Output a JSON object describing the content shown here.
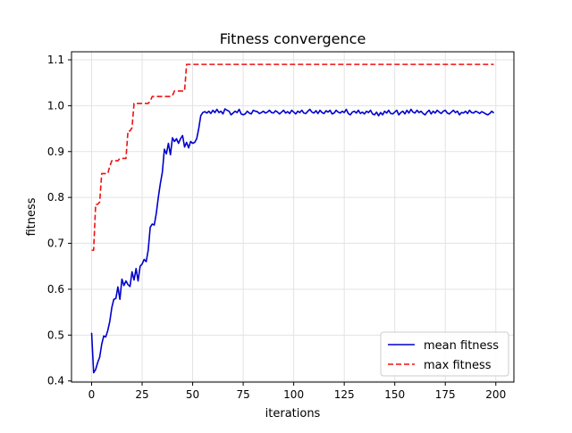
{
  "chart_data": {
    "type": "line",
    "title": "Fitness convergence",
    "xlabel": "iterations",
    "ylabel": "fitness",
    "xlim": [
      -9.95,
      208.95
    ],
    "ylim": [
      0.3975,
      1.1175
    ],
    "xticks": [
      0,
      25,
      50,
      75,
      100,
      125,
      150,
      175,
      200
    ],
    "xtick_labels": [
      "0",
      "25",
      "50",
      "75",
      "100",
      "125",
      "150",
      "175",
      "200"
    ],
    "yticks": [
      0.4,
      0.5,
      0.6,
      0.7,
      0.8,
      0.9,
      1.0,
      1.1
    ],
    "ytick_labels": [
      "0.4",
      "0.5",
      "0.6",
      "0.7",
      "0.8",
      "0.9",
      "1.0",
      "1.1"
    ],
    "grid": true,
    "legend_position": "lower right",
    "series": [
      {
        "name": "mean fitness",
        "color": "#0000cc",
        "style": "solid",
        "points": [
          [
            0,
            0.505
          ],
          [
            1,
            0.418
          ],
          [
            2,
            0.425
          ],
          [
            3,
            0.44
          ],
          [
            4,
            0.452
          ],
          [
            5,
            0.48
          ],
          [
            6,
            0.498
          ],
          [
            7,
            0.496
          ],
          [
            8,
            0.51
          ],
          [
            9,
            0.53
          ],
          [
            10,
            0.56
          ],
          [
            11,
            0.578
          ],
          [
            12,
            0.58
          ],
          [
            13,
            0.605
          ],
          [
            14,
            0.578
          ],
          [
            15,
            0.622
          ],
          [
            16,
            0.608
          ],
          [
            17,
            0.618
          ],
          [
            18,
            0.61
          ],
          [
            19,
            0.606
          ],
          [
            20,
            0.638
          ],
          [
            21,
            0.62
          ],
          [
            22,
            0.645
          ],
          [
            23,
            0.618
          ],
          [
            24,
            0.65
          ],
          [
            25,
            0.655
          ],
          [
            26,
            0.665
          ],
          [
            27,
            0.66
          ],
          [
            28,
            0.685
          ],
          [
            29,
            0.735
          ],
          [
            30,
            0.742
          ],
          [
            31,
            0.74
          ],
          [
            32,
            0.765
          ],
          [
            33,
            0.8
          ],
          [
            34,
            0.83
          ],
          [
            35,
            0.855
          ],
          [
            36,
            0.905
          ],
          [
            37,
            0.895
          ],
          [
            38,
            0.918
          ],
          [
            39,
            0.893
          ],
          [
            40,
            0.93
          ],
          [
            41,
            0.922
          ],
          [
            42,
            0.928
          ],
          [
            43,
            0.918
          ],
          [
            44,
            0.928
          ],
          [
            45,
            0.935
          ],
          [
            46,
            0.91
          ],
          [
            47,
            0.92
          ],
          [
            48,
            0.908
          ],
          [
            49,
            0.922
          ],
          [
            50,
            0.918
          ],
          [
            51,
            0.92
          ],
          [
            52,
            0.928
          ],
          [
            53,
            0.95
          ],
          [
            54,
            0.978
          ],
          [
            55,
            0.985
          ],
          [
            56,
            0.987
          ],
          [
            57,
            0.984
          ],
          [
            58,
            0.988
          ],
          [
            59,
            0.983
          ],
          [
            60,
            0.99
          ],
          [
            61,
            0.985
          ],
          [
            62,
            0.992
          ],
          [
            63,
            0.985
          ],
          [
            64,
            0.988
          ],
          [
            65,
            0.982
          ],
          [
            66,
            0.993
          ],
          [
            67,
            0.99
          ],
          [
            68,
            0.988
          ],
          [
            69,
            0.98
          ],
          [
            70,
            0.984
          ],
          [
            71,
            0.988
          ],
          [
            72,
            0.985
          ],
          [
            73,
            0.992
          ],
          [
            74,
            0.982
          ],
          [
            75,
            0.98
          ],
          [
            76,
            0.982
          ],
          [
            77,
            0.988
          ],
          [
            78,
            0.984
          ],
          [
            79,
            0.982
          ],
          [
            80,
            0.99
          ],
          [
            81,
            0.988
          ],
          [
            82,
            0.987
          ],
          [
            83,
            0.983
          ],
          [
            84,
            0.985
          ],
          [
            85,
            0.988
          ],
          [
            86,
            0.984
          ],
          [
            87,
            0.986
          ],
          [
            88,
            0.99
          ],
          [
            89,
            0.985
          ],
          [
            90,
            0.984
          ],
          [
            91,
            0.989
          ],
          [
            92,
            0.986
          ],
          [
            93,
            0.982
          ],
          [
            94,
            0.986
          ],
          [
            95,
            0.99
          ],
          [
            96,
            0.984
          ],
          [
            97,
            0.987
          ],
          [
            98,
            0.983
          ],
          [
            99,
            0.99
          ],
          [
            100,
            0.986
          ],
          [
            101,
            0.982
          ],
          [
            102,
            0.988
          ],
          [
            103,
            0.985
          ],
          [
            104,
            0.99
          ],
          [
            105,
            0.984
          ],
          [
            106,
            0.983
          ],
          [
            107,
            0.988
          ],
          [
            108,
            0.992
          ],
          [
            109,
            0.986
          ],
          [
            110,
            0.984
          ],
          [
            111,
            0.989
          ],
          [
            112,
            0.983
          ],
          [
            113,
            0.99
          ],
          [
            114,
            0.985
          ],
          [
            115,
            0.983
          ],
          [
            116,
            0.989
          ],
          [
            117,
            0.986
          ],
          [
            118,
            0.99
          ],
          [
            119,
            0.982
          ],
          [
            120,
            0.984
          ],
          [
            121,
            0.99
          ],
          [
            122,
            0.986
          ],
          [
            123,
            0.984
          ],
          [
            124,
            0.988
          ],
          [
            125,
            0.985
          ],
          [
            126,
            0.992
          ],
          [
            127,
            0.983
          ],
          [
            128,
            0.98
          ],
          [
            129,
            0.986
          ],
          [
            130,
            0.988
          ],
          [
            131,
            0.984
          ],
          [
            132,
            0.99
          ],
          [
            133,
            0.983
          ],
          [
            134,
            0.986
          ],
          [
            135,
            0.982
          ],
          [
            136,
            0.988
          ],
          [
            137,
            0.985
          ],
          [
            138,
            0.99
          ],
          [
            139,
            0.982
          ],
          [
            140,
            0.98
          ],
          [
            141,
            0.986
          ],
          [
            142,
            0.978
          ],
          [
            143,
            0.985
          ],
          [
            144,
            0.98
          ],
          [
            145,
            0.988
          ],
          [
            146,
            0.984
          ],
          [
            147,
            0.99
          ],
          [
            148,
            0.983
          ],
          [
            149,
            0.982
          ],
          [
            150,
            0.986
          ],
          [
            151,
            0.99
          ],
          [
            152,
            0.98
          ],
          [
            153,
            0.985
          ],
          [
            154,
            0.988
          ],
          [
            155,
            0.982
          ],
          [
            156,
            0.99
          ],
          [
            157,
            0.984
          ],
          [
            158,
            0.992
          ],
          [
            159,
            0.986
          ],
          [
            160,
            0.984
          ],
          [
            161,
            0.99
          ],
          [
            162,
            0.985
          ],
          [
            163,
            0.988
          ],
          [
            164,
            0.983
          ],
          [
            165,
            0.98
          ],
          [
            166,
            0.986
          ],
          [
            167,
            0.99
          ],
          [
            168,
            0.982
          ],
          [
            169,
            0.988
          ],
          [
            170,
            0.984
          ],
          [
            171,
            0.99
          ],
          [
            172,
            0.986
          ],
          [
            173,
            0.983
          ],
          [
            174,
            0.988
          ],
          [
            175,
            0.99
          ],
          [
            176,
            0.984
          ],
          [
            177,
            0.982
          ],
          [
            178,
            0.986
          ],
          [
            179,
            0.99
          ],
          [
            180,
            0.985
          ],
          [
            181,
            0.988
          ],
          [
            182,
            0.98
          ],
          [
            183,
            0.985
          ],
          [
            184,
            0.984
          ],
          [
            185,
            0.988
          ],
          [
            186,
            0.983
          ],
          [
            187,
            0.99
          ],
          [
            188,
            0.985
          ],
          [
            189,
            0.984
          ],
          [
            190,
            0.988
          ],
          [
            191,
            0.986
          ],
          [
            192,
            0.983
          ],
          [
            193,
            0.987
          ],
          [
            194,
            0.985
          ],
          [
            195,
            0.982
          ],
          [
            196,
            0.98
          ],
          [
            197,
            0.983
          ],
          [
            198,
            0.988
          ],
          [
            199,
            0.984
          ]
        ]
      },
      {
        "name": "max fitness",
        "color": "#ee1111",
        "style": "dashed",
        "points": [
          [
            0,
            0.685
          ],
          [
            1,
            0.685
          ],
          [
            2,
            0.785
          ],
          [
            3,
            0.785
          ],
          [
            4,
            0.79
          ],
          [
            5,
            0.852
          ],
          [
            6,
            0.852
          ],
          [
            7,
            0.852
          ],
          [
            8,
            0.852
          ],
          [
            9,
            0.868
          ],
          [
            10,
            0.88
          ],
          [
            11,
            0.88
          ],
          [
            12,
            0.88
          ],
          [
            13,
            0.88
          ],
          [
            14,
            0.885
          ],
          [
            15,
            0.885
          ],
          [
            16,
            0.885
          ],
          [
            17,
            0.885
          ],
          [
            18,
            0.945
          ],
          [
            19,
            0.945
          ],
          [
            20,
            0.952
          ],
          [
            21,
            1.005
          ],
          [
            22,
            1.005
          ],
          [
            23,
            1.005
          ],
          [
            24,
            1.005
          ],
          [
            25,
            1.005
          ],
          [
            26,
            1.005
          ],
          [
            27,
            1.005
          ],
          [
            28,
            1.005
          ],
          [
            29,
            1.01
          ],
          [
            30,
            1.02
          ],
          [
            31,
            1.02
          ],
          [
            32,
            1.02
          ],
          [
            33,
            1.02
          ],
          [
            34,
            1.02
          ],
          [
            35,
            1.02
          ],
          [
            36,
            1.02
          ],
          [
            37,
            1.02
          ],
          [
            38,
            1.02
          ],
          [
            39,
            1.02
          ],
          [
            40,
            1.022
          ],
          [
            41,
            1.032
          ],
          [
            42,
            1.032
          ],
          [
            43,
            1.032
          ],
          [
            44,
            1.032
          ],
          [
            45,
            1.032
          ],
          [
            46,
            1.032
          ],
          [
            47,
            1.09
          ],
          [
            48,
            1.09
          ],
          [
            199,
            1.09
          ]
        ]
      }
    ]
  }
}
